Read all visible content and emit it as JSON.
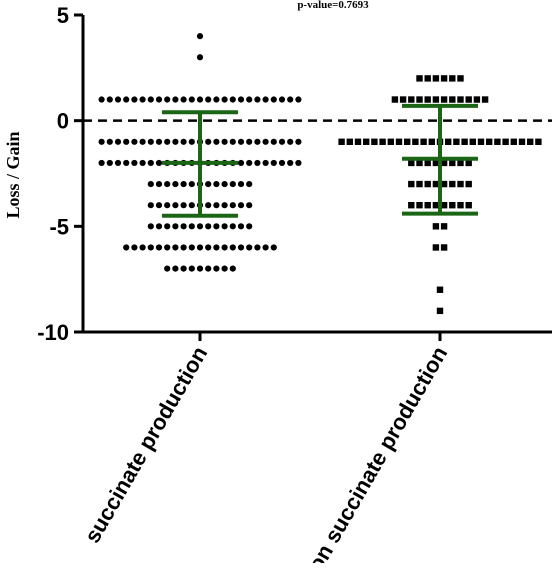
{
  "chart_data": {
    "type": "scatter",
    "ylabel": "Loss / Gain",
    "xlabel": "",
    "ylim": [
      -10,
      5
    ],
    "yticks": [
      5,
      0,
      -5,
      -10
    ],
    "categories": [
      "succinate production",
      "non succinate production"
    ],
    "annotation": "p-value=0.7693",
    "reference_line": 0,
    "colors": {
      "points": "#000000",
      "error_bars": "#1a6614",
      "axes": "#000000"
    },
    "series": [
      {
        "category": "succinate production",
        "marker": "circle",
        "mean": -2.0,
        "sd_upper": 0.4,
        "sd_lower": -4.5,
        "point_groups": [
          {
            "y": 4,
            "count": 1
          },
          {
            "y": 3,
            "count": 1
          },
          {
            "y": 1,
            "count": 25
          },
          {
            "y": -1,
            "count": 25
          },
          {
            "y": -2,
            "count": 25
          },
          {
            "y": -3,
            "count": 13
          },
          {
            "y": -4,
            "count": 13
          },
          {
            "y": -5,
            "count": 13
          },
          {
            "y": -6,
            "count": 19
          },
          {
            "y": -7,
            "count": 9
          }
        ]
      },
      {
        "category": "non succinate production",
        "marker": "square",
        "mean": -1.8,
        "sd_upper": 0.7,
        "sd_lower": -4.4,
        "point_groups": [
          {
            "y": 2,
            "count": 6
          },
          {
            "y": 1,
            "count": 12
          },
          {
            "y": -1,
            "count": 25
          },
          {
            "y": -2,
            "count": 8
          },
          {
            "y": -3,
            "count": 8
          },
          {
            "y": -4,
            "count": 8
          },
          {
            "y": -5,
            "count": 2
          },
          {
            "y": -6,
            "count": 2
          },
          {
            "y": -8,
            "count": 1
          },
          {
            "y": -9,
            "count": 1
          }
        ]
      }
    ]
  }
}
